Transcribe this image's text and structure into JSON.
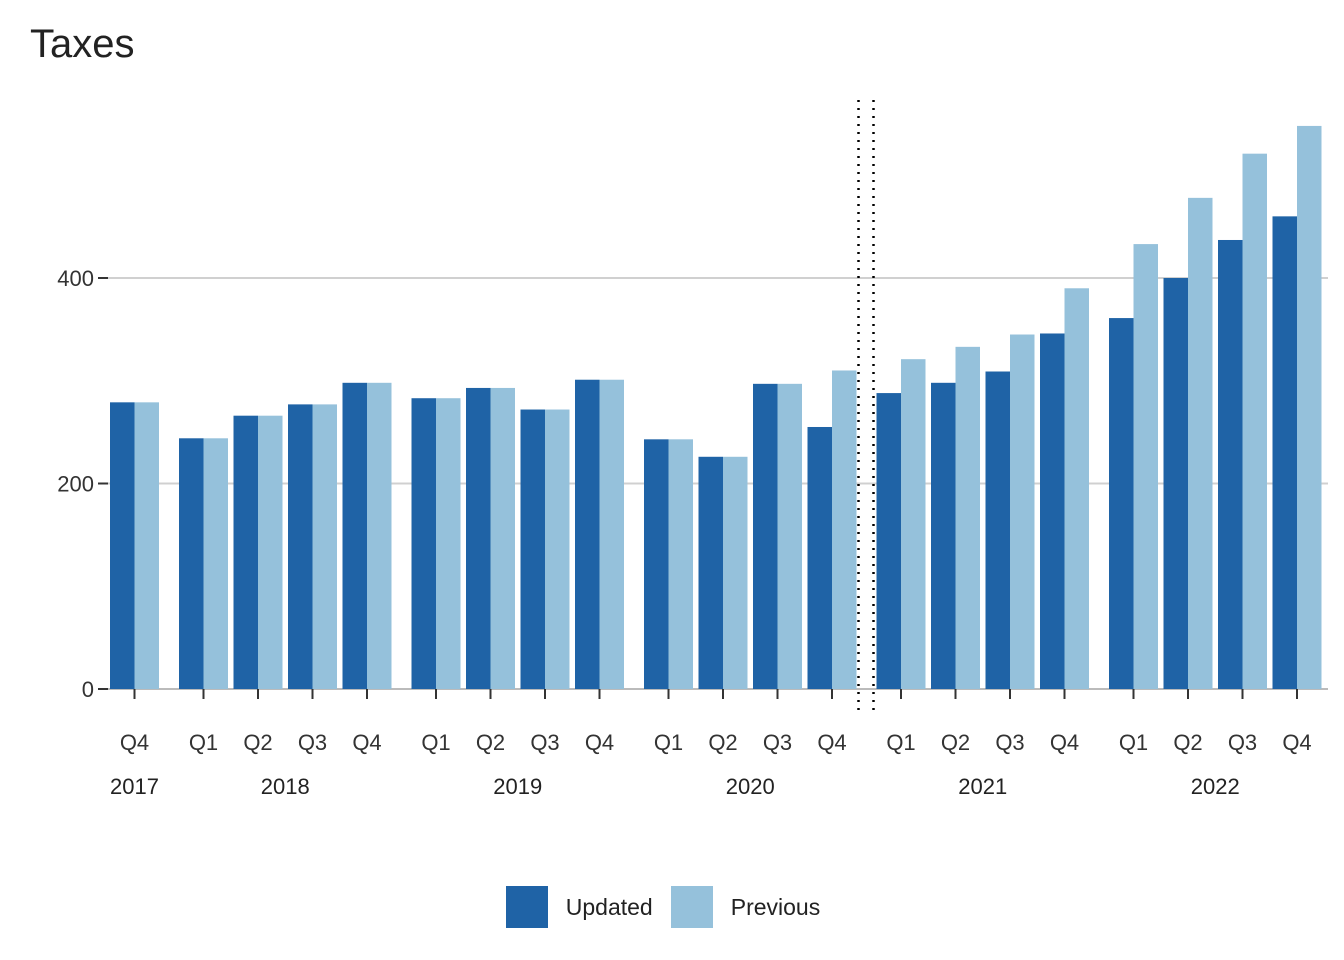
{
  "chart_data": {
    "type": "bar",
    "title": "Taxes",
    "xlabel": "",
    "ylabel": "",
    "ylim": [
      0,
      570
    ],
    "yticks": [
      0,
      200,
      400
    ],
    "grid": "horizontal",
    "legend_position": "bottom",
    "colors": {
      "Updated": "#1f63a6",
      "Previous": "#95c1db"
    },
    "groups": [
      {
        "year": "2017",
        "quarters": [
          "Q4"
        ]
      },
      {
        "year": "2018",
        "quarters": [
          "Q1",
          "Q2",
          "Q3",
          "Q4"
        ]
      },
      {
        "year": "2019",
        "quarters": [
          "Q1",
          "Q2",
          "Q3",
          "Q4"
        ]
      },
      {
        "year": "2020",
        "quarters": [
          "Q1",
          "Q2",
          "Q3",
          "Q4"
        ]
      },
      {
        "year": "2021",
        "quarters": [
          "Q1",
          "Q2",
          "Q3",
          "Q4"
        ]
      },
      {
        "year": "2022",
        "quarters": [
          "Q1",
          "Q2",
          "Q3",
          "Q4"
        ]
      }
    ],
    "series": [
      {
        "name": "Updated",
        "values": [
          279,
          244,
          266,
          277,
          298,
          283,
          293,
          272,
          301,
          243,
          226,
          297,
          255,
          288,
          298,
          309,
          346,
          361,
          400,
          437,
          460
        ]
      },
      {
        "name": "Previous",
        "values": [
          279,
          244,
          266,
          277,
          298,
          283,
          293,
          272,
          301,
          243,
          226,
          297,
          310,
          321,
          333,
          345,
          390,
          433,
          478,
          521,
          548
        ]
      }
    ],
    "annotations": [
      {
        "type": "dotted-vertical-line",
        "between": "2020 Q4 and 2021 Q1"
      }
    ]
  }
}
